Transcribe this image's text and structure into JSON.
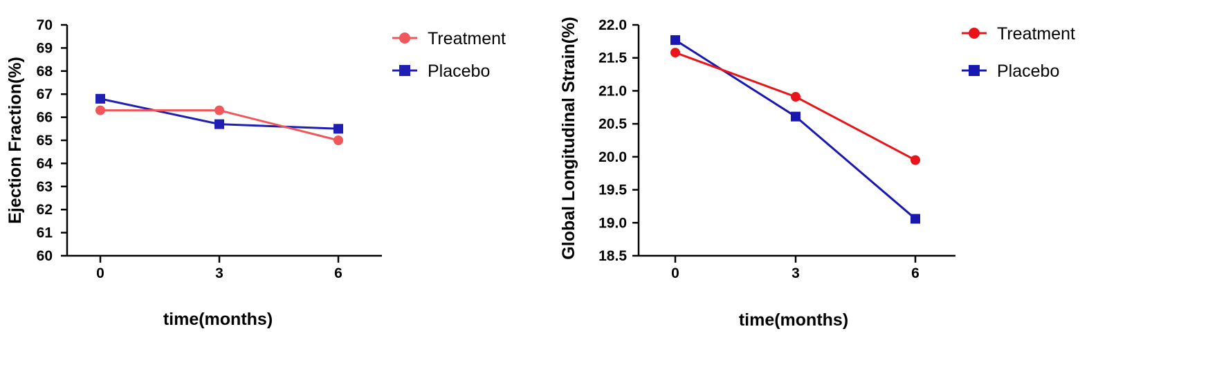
{
  "chart_data": [
    {
      "type": "line",
      "title": "",
      "xlabel": "time(months)",
      "ylabel": "Ejection Fraction(%)",
      "x": [
        0,
        3,
        6
      ],
      "x_tick_labels": [
        "0",
        "3",
        "6"
      ],
      "ylim": [
        60,
        70
      ],
      "y_ticks": [
        60,
        61,
        62,
        63,
        64,
        65,
        66,
        67,
        68,
        69,
        70
      ],
      "y_tick_labels": [
        "60",
        "61",
        "62",
        "63",
        "64",
        "65",
        "66",
        "67",
        "68",
        "69",
        "70"
      ],
      "grid": false,
      "legend_position": "top-right",
      "series": [
        {
          "name": "Treatment",
          "values": [
            66.3,
            66.3,
            65.0
          ],
          "color": "#f0565a",
          "marker": "circle"
        },
        {
          "name": "Placebo",
          "values": [
            66.8,
            65.7,
            65.5
          ],
          "color": "#1f1fb4",
          "marker": "square"
        }
      ]
    },
    {
      "type": "line",
      "title": "",
      "xlabel": "time(months)",
      "ylabel": "Global Longitudinal Strain(%)",
      "x": [
        0,
        3,
        6
      ],
      "x_tick_labels": [
        "0",
        "3",
        "6"
      ],
      "ylim": [
        18.5,
        22.0
      ],
      "y_ticks": [
        18.5,
        19.0,
        19.5,
        20.0,
        20.5,
        21.0,
        21.5,
        22.0
      ],
      "y_tick_labels": [
        "18.5",
        "19.0",
        "19.5",
        "20.0",
        "20.5",
        "21.0",
        "21.5",
        "22.0"
      ],
      "grid": false,
      "legend_position": "top-right",
      "series": [
        {
          "name": "Treatment",
          "values": [
            21.58,
            20.91,
            19.95
          ],
          "color": "#e8141a",
          "marker": "circle"
        },
        {
          "name": "Placebo",
          "values": [
            21.77,
            20.61,
            19.06
          ],
          "color": "#1818b0",
          "marker": "square"
        }
      ]
    }
  ]
}
